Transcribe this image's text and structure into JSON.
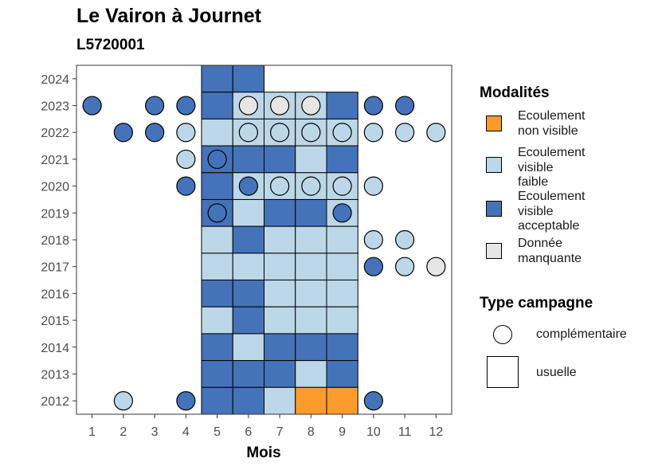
{
  "chart_data": {
    "type": "heatmap",
    "title": "Le Vairon à Journet",
    "subtitle": "L5720001",
    "xlabel": "Mois",
    "ylabel": "",
    "x_ticks": [
      "1",
      "2",
      "3",
      "4",
      "5",
      "6",
      "7",
      "8",
      "9",
      "10",
      "11",
      "12"
    ],
    "y_ticks": [
      "2012",
      "2013",
      "2014",
      "2015",
      "2016",
      "2017",
      "2018",
      "2019",
      "2020",
      "2021",
      "2022",
      "2023",
      "2024"
    ],
    "x_range": [
      0.5,
      12.5
    ],
    "y_range": [
      2011.5,
      2024.5
    ],
    "grid": false,
    "legend_position": "right",
    "colors": {
      "nv": "#fa9b2c",
      "vf": "#bcd7e8",
      "va": "#4573b9",
      "dm": "#e6e6e6",
      "border": "#000000",
      "panel_border": "#333333",
      "tick_text": "#4d4d4d"
    },
    "legend_modalites": {
      "title": "Modalités",
      "items": [
        {
          "key": "nv",
          "lines": [
            "Ecoulement",
            "non visible"
          ]
        },
        {
          "key": "vf",
          "lines": [
            "Ecoulement",
            "visible",
            "faible"
          ]
        },
        {
          "key": "va",
          "lines": [
            "Ecoulement",
            "visible",
            "acceptable"
          ]
        },
        {
          "key": "dm",
          "lines": [
            "Donnée",
            "manquante"
          ]
        }
      ]
    },
    "legend_campagne": {
      "title": "Type campagne",
      "items": [
        {
          "shape": "circle",
          "label": "complémentaire"
        },
        {
          "shape": "square",
          "label": "usuelle"
        }
      ]
    },
    "usuelle": [
      {
        "year": 2024,
        "cells": {
          "5": "va",
          "6": "va"
        }
      },
      {
        "year": 2023,
        "cells": {
          "5": "va",
          "6": "vf",
          "7": "vf",
          "8": "vf",
          "9": "va"
        }
      },
      {
        "year": 2022,
        "cells": {
          "5": "vf",
          "6": "vf",
          "7": "vf",
          "8": "vf",
          "9": "vf"
        }
      },
      {
        "year": 2021,
        "cells": {
          "5": "va",
          "6": "va",
          "7": "va",
          "8": "vf",
          "9": "va"
        }
      },
      {
        "year": 2020,
        "cells": {
          "5": "va",
          "6": "vf",
          "7": "vf",
          "8": "vf",
          "9": "vf"
        }
      },
      {
        "year": 2019,
        "cells": {
          "5": "va",
          "6": "vf",
          "7": "va",
          "8": "va",
          "9": "vf"
        }
      },
      {
        "year": 2018,
        "cells": {
          "5": "vf",
          "6": "va",
          "7": "vf",
          "8": "vf",
          "9": "vf"
        }
      },
      {
        "year": 2017,
        "cells": {
          "5": "vf",
          "6": "vf",
          "7": "vf",
          "8": "vf",
          "9": "vf"
        }
      },
      {
        "year": 2016,
        "cells": {
          "5": "va",
          "6": "va",
          "7": "vf",
          "8": "vf",
          "9": "vf"
        }
      },
      {
        "year": 2015,
        "cells": {
          "5": "vf",
          "6": "va",
          "7": "vf",
          "8": "vf",
          "9": "vf"
        }
      },
      {
        "year": 2014,
        "cells": {
          "5": "va",
          "6": "vf",
          "7": "va",
          "8": "va",
          "9": "va"
        }
      },
      {
        "year": 2013,
        "cells": {
          "5": "va",
          "6": "va",
          "7": "va",
          "8": "vf",
          "9": "va"
        }
      },
      {
        "year": 2012,
        "cells": {
          "5": "va",
          "6": "va",
          "7": "vf",
          "8": "nv",
          "9": "nv"
        }
      }
    ],
    "complementaire": [
      {
        "year": 2023,
        "points": {
          "1": "va",
          "3": "va",
          "4": "va",
          "6": "dm",
          "7": "dm",
          "8": "dm",
          "10": "va",
          "11": "va"
        }
      },
      {
        "year": 2022,
        "points": {
          "2": "va",
          "3": "va",
          "4": "vf",
          "6": "vf",
          "7": "vf",
          "8": "vf",
          "9": "vf",
          "10": "vf",
          "11": "vf",
          "12": "vf"
        }
      },
      {
        "year": 2021,
        "points": {
          "4": "vf",
          "5": "va"
        }
      },
      {
        "year": 2020,
        "points": {
          "4": "va",
          "6": "va",
          "7": "vf",
          "8": "vf",
          "9": "vf",
          "10": "vf"
        }
      },
      {
        "year": 2019,
        "points": {
          "5": "va",
          "9": "va"
        }
      },
      {
        "year": 2018,
        "points": {
          "10": "vf",
          "11": "vf"
        }
      },
      {
        "year": 2017,
        "points": {
          "10": "va",
          "11": "vf",
          "12": "dm"
        }
      },
      {
        "year": 2012,
        "points": {
          "2": "vf",
          "4": "va",
          "10": "va"
        }
      }
    ]
  }
}
